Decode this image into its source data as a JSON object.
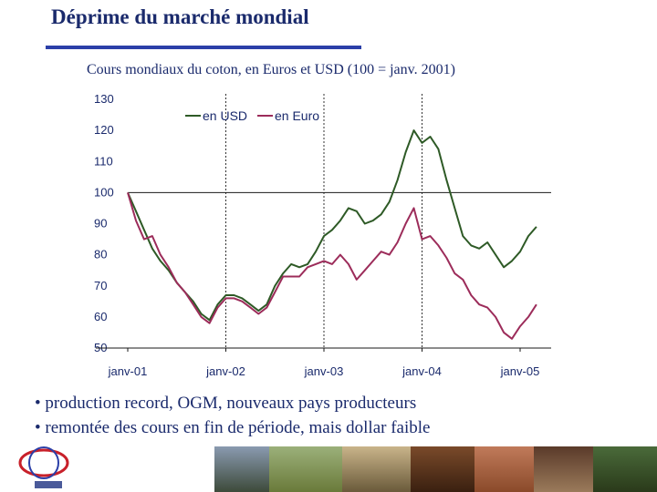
{
  "slide": {
    "title": "Déprime du marché mondial",
    "bullets": [
      "• production record, OGM, nouveaux pays producteurs",
      "• remontée des cours en fin de période, mais dollar faible"
    ]
  },
  "chart_data": {
    "type": "line",
    "title": "Cours mondiaux du coton, en Euros et USD (100 = janv. 2001)",
    "xlabel": "",
    "ylabel": "",
    "ylim": [
      50,
      130
    ],
    "yticks": [
      "130",
      "120",
      "110",
      "100",
      "90",
      "80",
      "70",
      "60",
      "50"
    ],
    "xticks": [
      "janv-01",
      "janv-02",
      "janv-03",
      "janv-04",
      "janv-05"
    ],
    "reference_line": 100,
    "vertical_markers": [
      "janv-02",
      "janv-03",
      "janv-04"
    ],
    "legend_placement": "top-center",
    "grid": false,
    "series": [
      {
        "name": "en USD",
        "color": "#2e5a26",
        "values": [
          100,
          94,
          88,
          82,
          78,
          75,
          71,
          68,
          65,
          61,
          59,
          64,
          67,
          67,
          66,
          64,
          62,
          64,
          70,
          74,
          77,
          76,
          77,
          81,
          86,
          88,
          91,
          95,
          94,
          90,
          91,
          93,
          97,
          104,
          113,
          120,
          116,
          118,
          114,
          104,
          95,
          86,
          83,
          82,
          84,
          80,
          76,
          78,
          81,
          86,
          89
        ]
      },
      {
        "name": "en Euro",
        "color": "#9c2c5a",
        "values": [
          100,
          91,
          85,
          86,
          80,
          76,
          71,
          68,
          64,
          60,
          58,
          63,
          66,
          66,
          65,
          63,
          61,
          63,
          68,
          73,
          73,
          73,
          76,
          77,
          78,
          77,
          80,
          77,
          72,
          75,
          78,
          81,
          80,
          84,
          90,
          95,
          85,
          86,
          83,
          79,
          74,
          72,
          67,
          64,
          63,
          60,
          55,
          53,
          57,
          60,
          64
        ]
      }
    ]
  },
  "colors": {
    "title": "#1a2a6c",
    "rule": "#2b3fa8",
    "usd": "#2e5a26",
    "euro": "#9c2c5a"
  },
  "decorations": {
    "logo": "organization-logo",
    "photos": "photo-strip"
  }
}
